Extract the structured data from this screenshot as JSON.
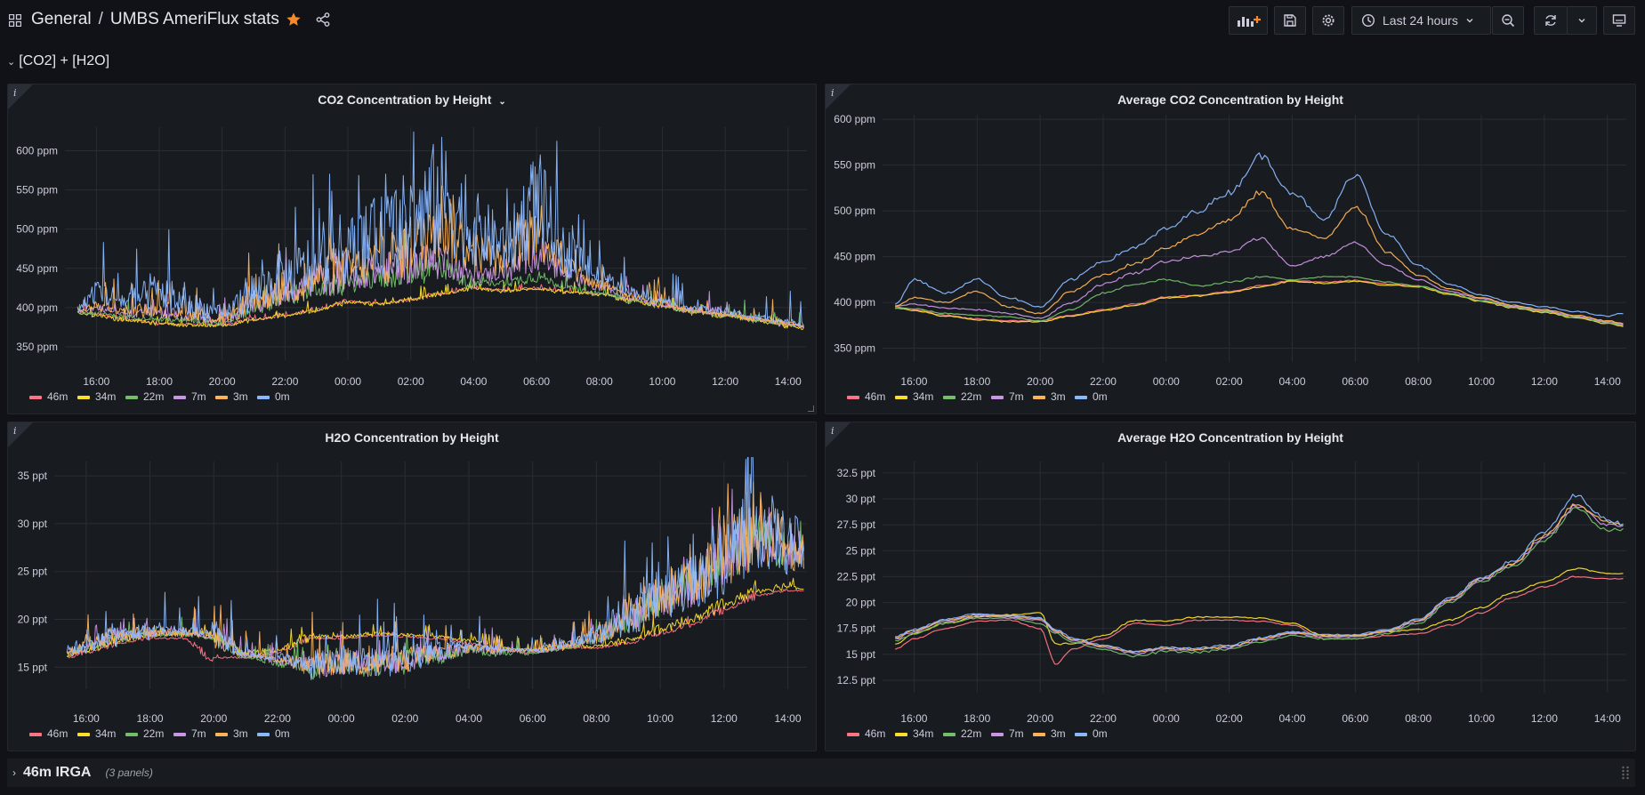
{
  "nav": {
    "folder": "General",
    "separator": "/",
    "dashboard": "UMBS AmeriFlux stats",
    "time_range": "Last 24 hours"
  },
  "icons": {
    "grid": "apps-grid-icon",
    "star": "star-icon",
    "share": "share-icon",
    "add_panel": "add-panel-icon",
    "save": "save-icon",
    "settings": "gear-icon",
    "clock": "clock-icon",
    "zoom_out": "zoom-out-icon",
    "refresh": "refresh-icon",
    "tv": "tv-mode-icon"
  },
  "colors": {
    "background": "#111217",
    "panel": "#181b1f",
    "star": "#f5892b"
  },
  "row1": {
    "title": "[CO2] + [H2O]"
  },
  "row2": {
    "title": "46m IRGA",
    "count": "(3 panels)"
  },
  "panels": [
    {
      "title": "CO2 Concentration by Height",
      "info": "i"
    },
    {
      "title": "Average CO2 Concentration by Height",
      "info": "i"
    },
    {
      "title": "H2O Concentration by Height",
      "info": "i"
    },
    {
      "title": "Average H2O Concentration by Height",
      "info": "i"
    }
  ],
  "legend": [
    {
      "name": "46m",
      "color": "#ff7383"
    },
    {
      "name": "34m",
      "color": "#fade2a"
    },
    {
      "name": "22m",
      "color": "#73bf69"
    },
    {
      "name": "7m",
      "color": "#ca95e5"
    },
    {
      "name": "3m",
      "color": "#ffb357"
    },
    {
      "name": "0m",
      "color": "#8ab8ff"
    }
  ],
  "chart_data": [
    {
      "type": "line",
      "title": "CO2 Concentration by Height",
      "x_ticks": [
        "16:00",
        "18:00",
        "20:00",
        "22:00",
        "00:00",
        "02:00",
        "04:00",
        "06:00",
        "08:00",
        "10:00",
        "12:00",
        "14:00"
      ],
      "y_ticks": [
        "350 ppm",
        "400 ppm",
        "450 ppm",
        "500 ppm",
        "550 ppm",
        "600 ppm"
      ],
      "ylim": [
        333,
        630
      ],
      "noisy": true,
      "x": [
        15.4,
        16,
        17,
        18,
        19,
        20,
        21,
        22,
        23,
        24,
        25,
        26,
        27,
        28,
        29,
        30,
        31,
        32,
        33,
        34,
        35,
        36,
        37,
        38,
        38.5
      ],
      "series": [
        {
          "name": "46m",
          "values": [
            395,
            392,
            385,
            380,
            378,
            378,
            385,
            390,
            398,
            408,
            405,
            410,
            418,
            425,
            422,
            425,
            420,
            418,
            410,
            402,
            395,
            390,
            384,
            378,
            375
          ]
        },
        {
          "name": "34m",
          "values": [
            393,
            390,
            384,
            380,
            377,
            377,
            384,
            390,
            397,
            407,
            404,
            410,
            418,
            424,
            421,
            424,
            419,
            417,
            409,
            401,
            394,
            389,
            383,
            377,
            374
          ]
        },
        {
          "name": "22m",
          "values": [
            394,
            393,
            388,
            385,
            383,
            380,
            398,
            415,
            425,
            430,
            438,
            445,
            450,
            430,
            432,
            440,
            425,
            418,
            410,
            402,
            395,
            390,
            384,
            378,
            375
          ]
        },
        {
          "name": "7m",
          "values": [
            396,
            400,
            392,
            395,
            388,
            382,
            405,
            420,
            432,
            440,
            448,
            455,
            462,
            440,
            445,
            470,
            440,
            425,
            412,
            404,
            396,
            391,
            385,
            379,
            376
          ]
        },
        {
          "name": "3m",
          "values": [
            396,
            402,
            395,
            398,
            390,
            385,
            408,
            425,
            438,
            450,
            460,
            480,
            510,
            470,
            460,
            500,
            450,
            430,
            415,
            405,
            397,
            392,
            386,
            380,
            377
          ]
        },
        {
          "name": "0m",
          "values": [
            398,
            420,
            408,
            420,
            402,
            392,
            420,
            440,
            455,
            475,
            490,
            510,
            540,
            500,
            480,
            530,
            470,
            440,
            420,
            408,
            400,
            395,
            388,
            383,
            380
          ]
        }
      ]
    },
    {
      "type": "line",
      "title": "Average CO2 Concentration by Height",
      "x_ticks": [
        "16:00",
        "18:00",
        "20:00",
        "22:00",
        "00:00",
        "02:00",
        "04:00",
        "06:00",
        "08:00",
        "10:00",
        "12:00",
        "14:00"
      ],
      "y_ticks": [
        "350 ppm",
        "400 ppm",
        "450 ppm",
        "500 ppm",
        "550 ppm",
        "600 ppm"
      ],
      "ylim": [
        335,
        605
      ],
      "noisy": false,
      "x": [
        15.4,
        16,
        17,
        18,
        19,
        20,
        21,
        22,
        23,
        24,
        25,
        26,
        27,
        28,
        29,
        30,
        31,
        32,
        33,
        34,
        35,
        36,
        37,
        38,
        38.5
      ],
      "series": [
        {
          "name": "46m",
          "values": [
            395,
            392,
            386,
            382,
            380,
            380,
            386,
            392,
            398,
            406,
            408,
            412,
            418,
            424,
            422,
            424,
            420,
            418,
            410,
            402,
            395,
            390,
            384,
            378,
            375
          ]
        },
        {
          "name": "34m",
          "values": [
            394,
            391,
            385,
            381,
            379,
            379,
            385,
            391,
            397,
            405,
            407,
            411,
            417,
            423,
            421,
            423,
            419,
            417,
            409,
            401,
            394,
            389,
            383,
            377,
            374
          ]
        },
        {
          "name": "22m",
          "values": [
            394,
            393,
            388,
            386,
            384,
            380,
            392,
            410,
            420,
            425,
            418,
            422,
            428,
            425,
            428,
            428,
            422,
            418,
            410,
            402,
            395,
            390,
            384,
            378,
            375
          ]
        },
        {
          "name": "7m",
          "values": [
            396,
            398,
            394,
            392,
            388,
            383,
            400,
            420,
            432,
            445,
            450,
            455,
            470,
            440,
            450,
            465,
            440,
            425,
            412,
            404,
            396,
            391,
            385,
            379,
            376
          ]
        },
        {
          "name": "3m",
          "values": [
            396,
            405,
            400,
            412,
            395,
            388,
            412,
            430,
            442,
            460,
            475,
            490,
            520,
            480,
            470,
            505,
            455,
            430,
            415,
            405,
            397,
            392,
            386,
            380,
            377
          ]
        },
        {
          "name": "0m",
          "values": [
            398,
            425,
            410,
            425,
            405,
            395,
            425,
            445,
            460,
            480,
            500,
            520,
            560,
            520,
            490,
            540,
            475,
            440,
            420,
            408,
            400,
            395,
            390,
            385,
            388
          ]
        }
      ]
    },
    {
      "type": "line",
      "title": "H2O Concentration by Height",
      "x_ticks": [
        "16:00",
        "18:00",
        "20:00",
        "22:00",
        "00:00",
        "02:00",
        "04:00",
        "06:00",
        "08:00",
        "10:00",
        "12:00",
        "14:00"
      ],
      "y_ticks": [
        "15 ppt",
        "20 ppt",
        "25 ppt",
        "30 ppt",
        "35 ppt"
      ],
      "ylim": [
        12.7,
        36.5
      ],
      "noisy": true,
      "x": [
        15.4,
        16,
        17,
        18,
        19,
        20,
        21,
        22,
        23,
        24,
        25,
        26,
        27,
        28,
        29,
        30,
        31,
        32,
        33,
        34,
        35,
        36,
        37,
        38,
        38.5
      ],
      "series": [
        {
          "name": "46m",
          "values": [
            16,
            16.5,
            17.5,
            18,
            18,
            16,
            16,
            16.5,
            18,
            18,
            18.3,
            18.2,
            18,
            17.5,
            16.8,
            16.5,
            17,
            17,
            17.5,
            18.5,
            19.5,
            21,
            22.5,
            23,
            23
          ]
        },
        {
          "name": "34m",
          "values": [
            16.2,
            16.8,
            17.8,
            18.3,
            18.5,
            18.5,
            16.5,
            16.8,
            18.2,
            18.2,
            18.5,
            18.4,
            18.2,
            17.8,
            17,
            16.8,
            17.2,
            17.2,
            17.8,
            19,
            20,
            21.5,
            23,
            23.5,
            23.3
          ]
        },
        {
          "name": "22m",
          "values": [
            16.5,
            17,
            18,
            18.5,
            18.5,
            18,
            16,
            15.5,
            15,
            15.3,
            15.2,
            15.5,
            16.2,
            16.8,
            16.5,
            16.5,
            17,
            18,
            20,
            22,
            23.5,
            26,
            29,
            27,
            27
          ]
        },
        {
          "name": "7m",
          "values": [
            16.5,
            17.2,
            18.2,
            18.6,
            18.6,
            18.2,
            16.2,
            15.7,
            15.2,
            15.5,
            15.4,
            15.7,
            16.4,
            17,
            16.7,
            16.7,
            17.2,
            18.2,
            20.2,
            22.2,
            23.7,
            26.3,
            29.5,
            27.5,
            27.3
          ]
        },
        {
          "name": "3m",
          "values": [
            16.6,
            17.3,
            18.3,
            18.7,
            18.7,
            18.3,
            16.3,
            15.8,
            15.3,
            15.6,
            15.5,
            15.8,
            16.5,
            17.1,
            16.8,
            16.8,
            17.3,
            18.3,
            20.3,
            22.3,
            23.8,
            26.5,
            29.7,
            27.8,
            27.5
          ]
        },
        {
          "name": "0m",
          "values": [
            16.7,
            17.4,
            18.4,
            18.8,
            18.8,
            18.4,
            16.4,
            15.9,
            15.4,
            15.7,
            15.6,
            15.9,
            16.6,
            17.2,
            16.9,
            16.9,
            17.4,
            18.4,
            20.4,
            22.4,
            24,
            26.8,
            30,
            28,
            27.6
          ]
        }
      ]
    },
    {
      "type": "line",
      "title": "Average H2O Concentration by Height",
      "x_ticks": [
        "16:00",
        "18:00",
        "20:00",
        "22:00",
        "00:00",
        "02:00",
        "04:00",
        "06:00",
        "08:00",
        "10:00",
        "12:00",
        "14:00"
      ],
      "y_ticks": [
        "12.5 ppt",
        "15 ppt",
        "17.5 ppt",
        "20 ppt",
        "22.5 ppt",
        "25 ppt",
        "27.5 ppt",
        "30 ppt",
        "32.5 ppt"
      ],
      "ylim": [
        11.3,
        33.6
      ],
      "noisy": false,
      "x": [
        15.4,
        16,
        17,
        18,
        19,
        20,
        20.5,
        21,
        22,
        23,
        24,
        25,
        26,
        27,
        28,
        29,
        30,
        31,
        32,
        33,
        34,
        35,
        36,
        37,
        38,
        38.5
      ],
      "series": [
        {
          "name": "46m",
          "values": [
            15.5,
            16.5,
            17.5,
            18.2,
            18.3,
            17.5,
            14,
            15.5,
            16.5,
            18,
            17.8,
            18.3,
            18.3,
            18.2,
            17.8,
            16.5,
            16.5,
            16.8,
            17,
            17.8,
            19,
            20.5,
            21.5,
            22.5,
            22.3,
            22.3
          ]
        },
        {
          "name": "34m",
          "values": [
            16,
            17,
            18,
            18.6,
            18.8,
            19,
            16,
            16,
            16.8,
            18.3,
            18.2,
            18.6,
            18.6,
            18.5,
            18,
            16.8,
            16.8,
            17.2,
            17.4,
            18.3,
            19.5,
            21,
            22,
            23.3,
            22.8,
            22.8
          ]
        },
        {
          "name": "22m",
          "values": [
            16.3,
            17,
            18,
            18.5,
            18.5,
            18,
            17,
            16.2,
            15.5,
            14.8,
            15.3,
            15.2,
            15.5,
            16.2,
            16.8,
            16.5,
            16.5,
            17,
            18,
            20,
            22,
            23.5,
            26,
            29,
            27,
            27
          ]
        },
        {
          "name": "7m",
          "values": [
            16.5,
            17.2,
            18.2,
            18.7,
            18.6,
            18.3,
            17.2,
            16.4,
            15.7,
            15.1,
            15.5,
            15.4,
            15.7,
            16.4,
            17,
            16.7,
            16.7,
            17.2,
            18.2,
            20.2,
            22.2,
            23.7,
            26.3,
            29.3,
            27.5,
            27.3
          ]
        },
        {
          "name": "3m",
          "values": [
            16.6,
            17.3,
            18.3,
            18.8,
            18.7,
            18.4,
            17.3,
            16.5,
            15.8,
            15.2,
            15.6,
            15.5,
            15.8,
            16.5,
            17.1,
            16.8,
            16.8,
            17.3,
            18.3,
            20.3,
            22.3,
            23.8,
            26.5,
            29.5,
            27.8,
            27.5
          ]
        },
        {
          "name": "0m",
          "values": [
            16.7,
            17.4,
            18.4,
            18.9,
            18.8,
            18.5,
            17.4,
            16.6,
            15.9,
            15.3,
            15.7,
            15.6,
            15.9,
            16.6,
            17.2,
            16.9,
            16.9,
            17.4,
            18.4,
            20.4,
            22.4,
            24,
            26.8,
            30.3,
            28,
            27.6
          ]
        }
      ]
    }
  ]
}
